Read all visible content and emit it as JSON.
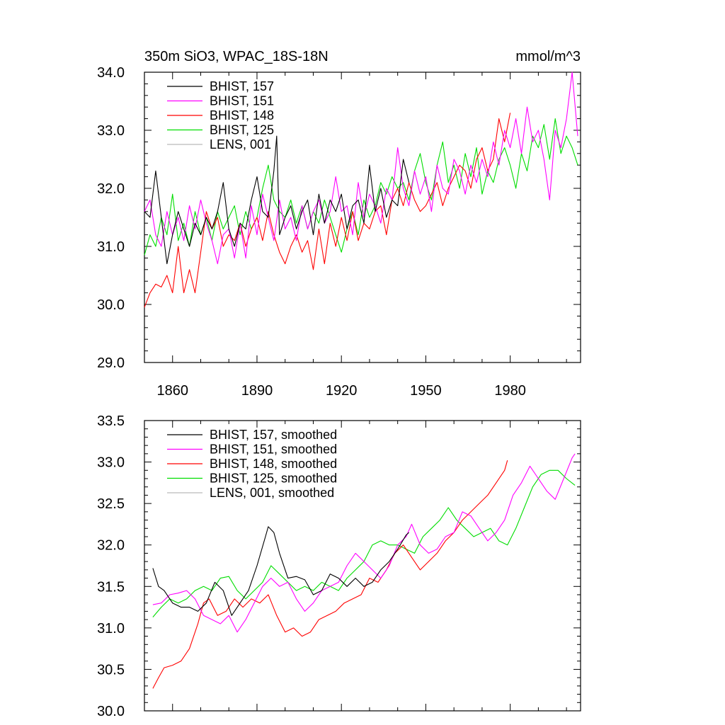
{
  "header": {
    "title": "350m SiO3, WPAC_18S-18N",
    "units": "mmol/m^3"
  },
  "chart_data": [
    {
      "type": "line",
      "xlim": [
        1850,
        2005
      ],
      "ylim": [
        29.0,
        34.0
      ],
      "x_ticks": [
        1860,
        1890,
        1920,
        1950,
        1980
      ],
      "x_tick_labels": [
        "1860",
        "1890",
        "1920",
        "1950",
        "1980"
      ],
      "y_ticks": [
        29.0,
        30.0,
        31.0,
        32.0,
        33.0,
        34.0
      ],
      "y_tick_labels": [
        "29.0",
        "30.0",
        "31.0",
        "32.0",
        "33.0",
        "34.0"
      ],
      "legend_position": "top-left",
      "series": [
        {
          "name": "BHIST, 157",
          "color": "#000000",
          "x": [
            1850,
            1852,
            1854,
            1856,
            1858,
            1860,
            1862,
            1864,
            1866,
            1868,
            1870,
            1872,
            1874,
            1876,
            1878,
            1880,
            1882,
            1884,
            1886,
            1888,
            1890,
            1892,
            1894,
            1896,
            1897,
            1898,
            1900,
            1902,
            1904,
            1906,
            1908,
            1910,
            1912,
            1914,
            1916,
            1918,
            1920,
            1922,
            1924,
            1926,
            1928,
            1930,
            1932,
            1934,
            1936,
            1938,
            1940,
            1942,
            1944
          ],
          "y": [
            31.6,
            31.5,
            32.3,
            31.5,
            30.7,
            31.2,
            31.6,
            31.3,
            31.0,
            31.4,
            31.2,
            31.5,
            31.3,
            31.6,
            32.1,
            31.3,
            31.0,
            31.4,
            31.3,
            31.8,
            32.2,
            31.6,
            31.5,
            32.3,
            32.9,
            31.2,
            31.5,
            31.7,
            31.3,
            31.6,
            31.8,
            31.2,
            31.9,
            31.4,
            31.8,
            31.6,
            31.9,
            31.3,
            31.7,
            31.8,
            31.4,
            32.4,
            31.6,
            32.0,
            31.5,
            31.8,
            31.7,
            32.5,
            32.1
          ]
        },
        {
          "name": "BHIST, 151",
          "color": "#ff00ff",
          "x": [
            1850,
            1852,
            1854,
            1856,
            1858,
            1860,
            1862,
            1864,
            1866,
            1868,
            1870,
            1872,
            1874,
            1876,
            1878,
            1880,
            1882,
            1884,
            1886,
            1888,
            1890,
            1892,
            1894,
            1896,
            1898,
            1900,
            1902,
            1904,
            1906,
            1908,
            1910,
            1912,
            1914,
            1916,
            1918,
            1920,
            1922,
            1924,
            1926,
            1928,
            1930,
            1932,
            1934,
            1936,
            1938,
            1940,
            1942,
            1944,
            1946,
            1948,
            1950,
            1952,
            1954,
            1956,
            1958,
            1960,
            1962,
            1964,
            1966,
            1968,
            1970,
            1972,
            1974,
            1976,
            1978,
            1980,
            1982,
            1984,
            1986,
            1988,
            1990,
            1992,
            1994,
            1996,
            1998,
            2000,
            2002,
            2004
          ],
          "y": [
            31.6,
            31.8,
            31.2,
            31.0,
            31.6,
            31.2,
            31.5,
            31.1,
            31.7,
            31.3,
            31.8,
            31.4,
            31.1,
            30.7,
            31.2,
            31.3,
            30.8,
            31.4,
            30.8,
            31.7,
            31.2,
            31.9,
            31.5,
            31.1,
            31.8,
            31.3,
            31.5,
            31.1,
            31.7,
            31.3,
            31.6,
            31.8,
            31.4,
            31.6,
            32.2,
            31.6,
            31.7,
            31.2,
            32.1,
            31.5,
            31.9,
            31.7,
            31.4,
            32.0,
            31.8,
            32.7,
            32.0,
            31.7,
            32.3,
            31.9,
            32.2,
            31.6,
            32.4,
            32.0,
            31.9,
            32.5,
            32.3,
            31.9,
            32.4,
            32.1,
            32.5,
            32.2,
            32.8,
            32.4,
            33.0,
            32.7,
            33.2,
            32.6,
            33.4,
            32.8,
            33.0,
            32.5,
            31.8,
            33.0,
            32.7,
            33.2,
            34.0,
            32.9
          ]
        },
        {
          "name": "BHIST, 148",
          "color": "#ff0000",
          "x": [
            1850,
            1852,
            1854,
            1856,
            1858,
            1860,
            1862,
            1864,
            1866,
            1868,
            1870,
            1872,
            1874,
            1876,
            1878,
            1880,
            1882,
            1884,
            1886,
            1888,
            1890,
            1892,
            1894,
            1896,
            1898,
            1900,
            1902,
            1904,
            1906,
            1908,
            1910,
            1912,
            1914,
            1916,
            1918,
            1920,
            1922,
            1924,
            1926,
            1928,
            1930,
            1932,
            1934,
            1936,
            1938,
            1940,
            1942,
            1944,
            1946,
            1948,
            1950,
            1952,
            1954,
            1956,
            1958,
            1960,
            1962,
            1964,
            1966,
            1968,
            1970,
            1972,
            1974,
            1976,
            1978,
            1980
          ],
          "y": [
            29.95,
            30.2,
            30.35,
            30.3,
            30.5,
            30.2,
            31.0,
            30.2,
            30.6,
            30.2,
            30.9,
            31.6,
            31.3,
            31.5,
            31.0,
            31.2,
            31.1,
            31.4,
            31.0,
            31.3,
            31.5,
            31.1,
            31.6,
            31.2,
            30.9,
            30.7,
            31.0,
            31.2,
            30.9,
            31.1,
            30.6,
            31.3,
            30.7,
            31.4,
            31.0,
            31.5,
            31.1,
            31.6,
            31.1,
            31.4,
            31.3,
            31.6,
            31.7,
            31.2,
            31.8,
            32.0,
            31.7,
            32.1,
            31.8,
            31.6,
            31.7,
            31.9,
            32.1,
            31.7,
            32.0,
            32.2,
            32.4,
            32.3,
            32.0,
            32.5,
            32.7,
            32.3,
            32.5,
            33.2,
            32.8,
            33.3
          ]
        },
        {
          "name": "BHIST, 125",
          "color": "#00dd00",
          "x": [
            1850,
            1852,
            1854,
            1856,
            1858,
            1860,
            1862,
            1864,
            1866,
            1868,
            1870,
            1872,
            1874,
            1876,
            1878,
            1880,
            1882,
            1884,
            1886,
            1888,
            1890,
            1892,
            1894,
            1896,
            1898,
            1900,
            1902,
            1904,
            1906,
            1908,
            1910,
            1912,
            1914,
            1916,
            1918,
            1920,
            1922,
            1924,
            1926,
            1928,
            1930,
            1932,
            1934,
            1936,
            1938,
            1940,
            1942,
            1944,
            1946,
            1948,
            1950,
            1952,
            1954,
            1956,
            1958,
            1960,
            1962,
            1964,
            1966,
            1968,
            1970,
            1972,
            1974,
            1976,
            1978,
            1980,
            1982,
            1984,
            1986,
            1988,
            1990,
            1992,
            1994,
            1996,
            1998,
            2000,
            2002,
            2004
          ],
          "y": [
            30.85,
            31.2,
            31.0,
            31.5,
            31.2,
            31.9,
            31.1,
            31.4,
            31.0,
            31.6,
            31.2,
            31.5,
            31.1,
            31.6,
            31.3,
            31.5,
            31.7,
            31.2,
            31.6,
            31.3,
            31.5,
            32.0,
            32.4,
            31.8,
            31.6,
            31.5,
            31.8,
            31.4,
            31.7,
            31.3,
            31.6,
            31.4,
            31.8,
            31.5,
            31.2,
            30.9,
            31.3,
            31.6,
            31.2,
            31.8,
            31.5,
            31.7,
            32.1,
            31.9,
            32.2,
            32.0,
            32.1,
            31.8,
            32.3,
            32.6,
            32.1,
            31.8,
            32.4,
            32.8,
            32.1,
            32.4,
            32.0,
            32.6,
            32.2,
            32.7,
            31.9,
            32.3,
            32.1,
            32.5,
            32.7,
            32.4,
            32.0,
            32.6,
            32.3,
            32.9,
            32.7,
            33.1,
            32.5,
            33.2,
            32.6,
            32.9,
            32.7,
            32.4
          ]
        },
        {
          "name": "LENS, 001",
          "color": "#bbbbbb",
          "x": [],
          "y": []
        }
      ]
    },
    {
      "type": "line",
      "xlim": [
        1850,
        2005
      ],
      "ylim": [
        30.0,
        33.5
      ],
      "y_ticks": [
        30.0,
        30.5,
        31.0,
        31.5,
        32.0,
        32.5,
        33.0,
        33.5
      ],
      "y_tick_labels": [
        "30.0",
        "30.5",
        "31.0",
        "31.5",
        "32.0",
        "32.5",
        "33.0",
        "33.5"
      ],
      "legend_position": "top-left",
      "series": [
        {
          "name": "BHIST, 157, smoothed",
          "color": "#000000",
          "x": [
            1853,
            1855,
            1857,
            1860,
            1863,
            1866,
            1869,
            1872,
            1875,
            1878,
            1881,
            1884,
            1887,
            1890,
            1893,
            1894,
            1896,
            1898,
            1901,
            1904,
            1907,
            1910,
            1913,
            1916,
            1919,
            1922,
            1925,
            1928,
            1931,
            1934,
            1937,
            1940,
            1943,
            1944
          ],
          "y": [
            31.72,
            31.5,
            31.45,
            31.3,
            31.25,
            31.25,
            31.2,
            31.3,
            31.55,
            31.45,
            31.15,
            31.3,
            31.45,
            31.75,
            32.1,
            32.22,
            32.15,
            31.9,
            31.6,
            31.62,
            31.58,
            31.4,
            31.45,
            31.65,
            31.6,
            31.5,
            31.6,
            31.5,
            31.55,
            31.7,
            31.8,
            31.95,
            32.12,
            32.15
          ]
        },
        {
          "name": "BHIST, 151, smoothed",
          "color": "#ff00ff",
          "x": [
            1853,
            1856,
            1859,
            1862,
            1865,
            1868,
            1871,
            1874,
            1877,
            1880,
            1883,
            1886,
            1889,
            1892,
            1895,
            1898,
            1901,
            1904,
            1907,
            1910,
            1913,
            1916,
            1919,
            1922,
            1925,
            1928,
            1931,
            1934,
            1937,
            1940,
            1943,
            1945,
            1948,
            1951,
            1954,
            1957,
            1960,
            1963,
            1966,
            1969,
            1972,
            1975,
            1978,
            1981,
            1984,
            1987,
            1990,
            1993,
            1996,
            1999,
            2002,
            2003
          ],
          "y": [
            31.28,
            31.3,
            31.4,
            31.42,
            31.45,
            31.35,
            31.15,
            31.1,
            31.05,
            31.15,
            30.95,
            31.1,
            31.3,
            31.5,
            31.6,
            31.5,
            31.55,
            31.35,
            31.2,
            31.3,
            31.45,
            31.5,
            31.55,
            31.75,
            31.9,
            31.8,
            31.7,
            31.6,
            31.75,
            32.0,
            32.1,
            32.25,
            32.0,
            31.9,
            31.95,
            32.1,
            32.15,
            32.4,
            32.35,
            32.2,
            32.05,
            32.15,
            32.3,
            32.6,
            32.75,
            32.95,
            32.8,
            32.65,
            32.55,
            32.8,
            33.05,
            33.1
          ]
        },
        {
          "name": "BHIST, 148, smoothed",
          "color": "#ff0000",
          "x": [
            1853,
            1855,
            1857,
            1860,
            1863,
            1866,
            1869,
            1871,
            1873,
            1876,
            1879,
            1882,
            1885,
            1888,
            1891,
            1894,
            1897,
            1900,
            1903,
            1906,
            1909,
            1912,
            1915,
            1918,
            1921,
            1924,
            1927,
            1930,
            1933,
            1936,
            1939,
            1942,
            1945,
            1948,
            1951,
            1954,
            1957,
            1960,
            1963,
            1966,
            1969,
            1972,
            1975,
            1978,
            1979
          ],
          "y": [
            30.27,
            30.4,
            30.52,
            30.55,
            30.6,
            30.75,
            31.05,
            31.3,
            31.35,
            31.15,
            31.2,
            31.35,
            31.25,
            31.35,
            31.3,
            31.4,
            31.15,
            30.95,
            31.0,
            30.9,
            30.95,
            31.1,
            31.15,
            31.2,
            31.3,
            31.35,
            31.4,
            31.6,
            31.55,
            31.7,
            31.9,
            32.0,
            31.85,
            31.7,
            31.8,
            31.9,
            32.05,
            32.15,
            32.3,
            32.4,
            32.5,
            32.6,
            32.75,
            32.9,
            33.02
          ]
        },
        {
          "name": "BHIST, 125, smoothed",
          "color": "#00dd00",
          "x": [
            1853,
            1856,
            1859,
            1862,
            1865,
            1868,
            1871,
            1874,
            1877,
            1880,
            1883,
            1886,
            1889,
            1892,
            1895,
            1898,
            1901,
            1904,
            1907,
            1910,
            1913,
            1916,
            1919,
            1922,
            1925,
            1928,
            1931,
            1934,
            1937,
            1940,
            1943,
            1946,
            1949,
            1952,
            1955,
            1958,
            1961,
            1964,
            1967,
            1970,
            1973,
            1976,
            1979,
            1982,
            1985,
            1988,
            1991,
            1994,
            1997,
            2000,
            2003
          ],
          "y": [
            31.13,
            31.25,
            31.35,
            31.3,
            31.35,
            31.45,
            31.5,
            31.45,
            31.6,
            31.62,
            31.45,
            31.35,
            31.45,
            31.55,
            31.75,
            31.65,
            31.55,
            31.45,
            31.5,
            31.45,
            31.55,
            31.5,
            31.45,
            31.6,
            31.7,
            31.8,
            32.0,
            32.05,
            32.0,
            32.0,
            31.95,
            31.9,
            32.1,
            32.2,
            32.3,
            32.45,
            32.3,
            32.2,
            32.1,
            32.15,
            32.2,
            32.05,
            32.0,
            32.2,
            32.45,
            32.7,
            32.85,
            32.9,
            32.9,
            32.8,
            32.72
          ]
        },
        {
          "name": "LENS, 001, smoothed",
          "color": "#bbbbbb",
          "x": [],
          "y": []
        }
      ]
    }
  ]
}
